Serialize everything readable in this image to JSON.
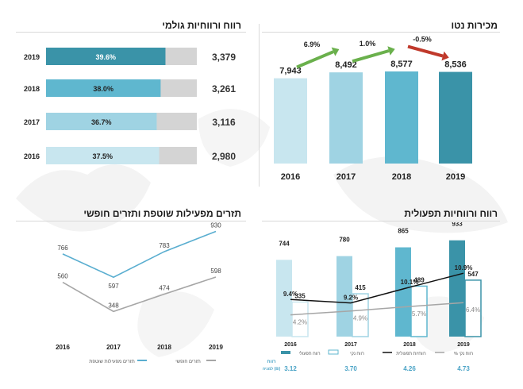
{
  "panels": {
    "net_sales": {
      "title": "מכירות נטו"
    },
    "gross_profit": {
      "title": "רווח ורווחיות גולמי"
    },
    "operating_profit": {
      "title": "רווח ורווחיות תפעולית"
    },
    "cash_flow": {
      "title": "תזרים מפעילות שוטפת ותזרים חופשי"
    }
  },
  "colors": {
    "c2016": "#c8e6ef",
    "c2017": "#9fd3e3",
    "c2018": "#5fb7cf",
    "c2019": "#3a93a8",
    "grey": "#d4d4d4",
    "up_arrow": "#6ab04c",
    "down_arrow": "#c0392b",
    "line_black": "#111111",
    "line_grey": "#a6a6a6",
    "line_blue": "#5aaed0"
  },
  "chart_data": [
    {
      "id": "net_sales",
      "type": "bar",
      "title": "מכירות נטו",
      "categories": [
        "2016",
        "2017",
        "2018",
        "2019"
      ],
      "values": [
        7943,
        8492,
        8577,
        8536
      ],
      "value_labels": [
        "7,943",
        "8,492",
        "8,577",
        "8,536"
      ],
      "changes": [
        "6.9%",
        "1.0%",
        "-0.5%"
      ],
      "change_directions": [
        "up",
        "up",
        "down"
      ],
      "ylim": [
        0,
        10500
      ]
    },
    {
      "id": "gross_profit",
      "type": "bar",
      "orientation": "horizontal",
      "title": "רווח ורווחיות גולמי",
      "categories": [
        "2019",
        "2018",
        "2017",
        "2016"
      ],
      "margins": [
        39.6,
        38.0,
        36.7,
        37.5
      ],
      "margin_labels": [
        "39.6%",
        "38.0%",
        "36.7%",
        "37.5%"
      ],
      "values": [
        3379,
        3261,
        3116,
        2980
      ],
      "value_labels": [
        "3,379",
        "3,261",
        "3,116",
        "2,980"
      ]
    },
    {
      "id": "operating_profit",
      "type": "bar",
      "title": "רווח ורווחיות תפעולית",
      "categories": [
        "2016",
        "2017",
        "2018",
        "2019"
      ],
      "series": [
        {
          "name": "רווח תפעולי",
          "values": [
            744,
            780,
            865,
            933
          ],
          "labels": [
            "744",
            "780",
            "865",
            "933"
          ]
        },
        {
          "name": "רווח נקי",
          "values": [
            335,
            415,
            489,
            547
          ],
          "labels": [
            "335",
            "415",
            "489",
            "547"
          ]
        },
        {
          "name": "רווחיות תפעולית",
          "type": "line",
          "values": [
            9.4,
            9.2,
            10.1,
            10.9
          ],
          "labels": [
            "9.4%",
            "9.2%",
            "10.1%",
            "10.9%"
          ]
        },
        {
          "name": "% רווח נקי",
          "type": "line",
          "values": [
            4.2,
            4.9,
            5.7,
            6.4
          ],
          "labels": [
            "4.2%",
            "4.9%",
            "5.7%",
            "6.4%"
          ]
        }
      ],
      "eps_label_line1": "רווח",
      "eps_label_line2": "למניה (₪)",
      "eps_values": [
        "3.12",
        "3.70",
        "4.26",
        "4.73"
      ],
      "ylim": [
        0,
        1000
      ]
    },
    {
      "id": "cash_flow",
      "type": "line",
      "title": "תזרים מפעילות שוטפת ותזרים חופשי",
      "categories": [
        "2016",
        "2017",
        "2018",
        "2019"
      ],
      "series": [
        {
          "name": "תזרים מפעילות שוטפת",
          "values": [
            766,
            597,
            783,
            930
          ],
          "labels": [
            "766",
            "597",
            "783",
            "930"
          ]
        },
        {
          "name": "תזרים חופשי",
          "values": [
            560,
            348,
            474,
            598
          ],
          "labels": [
            "560",
            "348",
            "474",
            "598"
          ]
        }
      ],
      "ylim": [
        200,
        950
      ]
    }
  ]
}
